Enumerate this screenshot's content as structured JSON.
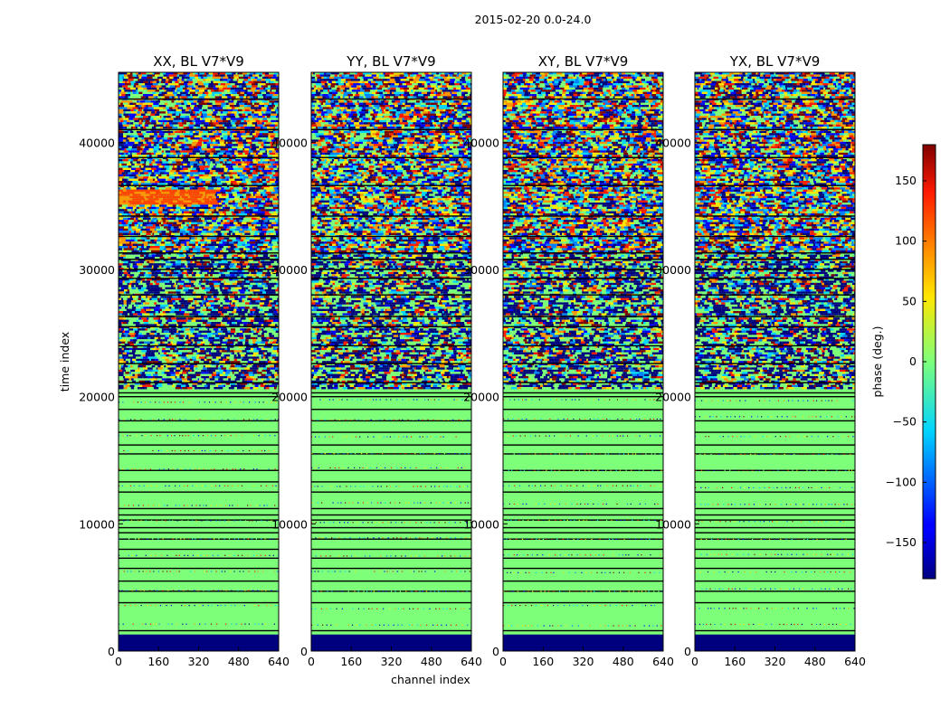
{
  "chart_data": {
    "type": "heatmap",
    "title": "2015-02-20 0.0-24.0",
    "xlabel": "channel index",
    "ylabel": "time index",
    "xlim": [
      0,
      640
    ],
    "ylim": [
      0,
      45500
    ],
    "x_ticks": [
      "0",
      "160",
      "320",
      "480",
      "640"
    ],
    "y_ticks": [
      "0",
      "10000",
      "20000",
      "30000",
      "40000"
    ],
    "colorbar": {
      "label": "phase (deg.)",
      "range": [
        -180,
        180
      ],
      "ticks": [
        "150",
        "100",
        "50",
        "0",
        "−50",
        "−100",
        "−150"
      ],
      "colormap": "jet"
    },
    "panels": [
      {
        "title": "XX, BL V7*V9"
      },
      {
        "title": "YY, BL V7*V9"
      },
      {
        "title": "XY, BL V7*V9"
      },
      {
        "title": "YX, BL V7*V9"
      }
    ]
  }
}
